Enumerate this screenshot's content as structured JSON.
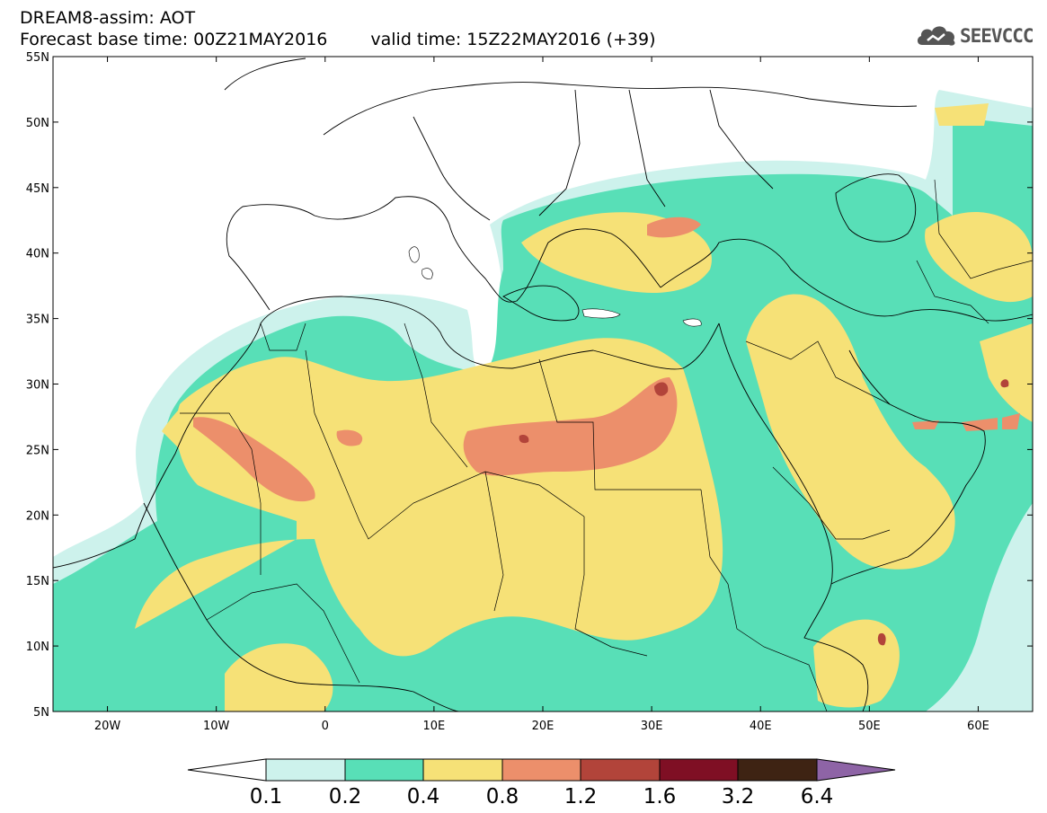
{
  "header": {
    "title": "DREAM8-assim: AOT",
    "base_time": "Forecast base time: 00Z21MAY2016",
    "valid_time": "valid time: 15Z22MAY2016 (+39)"
  },
  "logo": {
    "text": "SEEVCCC",
    "icon": "cloud-icon"
  },
  "colors": {
    "c1": "#cdf2ec",
    "c2": "#58dfb7",
    "c3": "#f6e177",
    "c4": "#ec8f6b",
    "c5": "#b2443a",
    "c6": "#7f0f24",
    "c7": "#3e2313",
    "c8": "#8e64a6"
  },
  "map": {
    "lat_labels": [
      "55N",
      "50N",
      "45N",
      "40N",
      "35N",
      "30N",
      "25N",
      "20N",
      "15N",
      "10N",
      "5N"
    ],
    "lon_labels": [
      "20W",
      "10W",
      "0",
      "10E",
      "20E",
      "30E",
      "40E",
      "50E",
      "60E"
    ],
    "lon_range": [
      -25,
      65
    ],
    "lat_range": [
      5,
      55
    ]
  },
  "legend": {
    "labels": [
      "0.1",
      "0.2",
      "0.4",
      "0.8",
      "1.2",
      "1.6",
      "3.2",
      "6.4"
    ]
  }
}
